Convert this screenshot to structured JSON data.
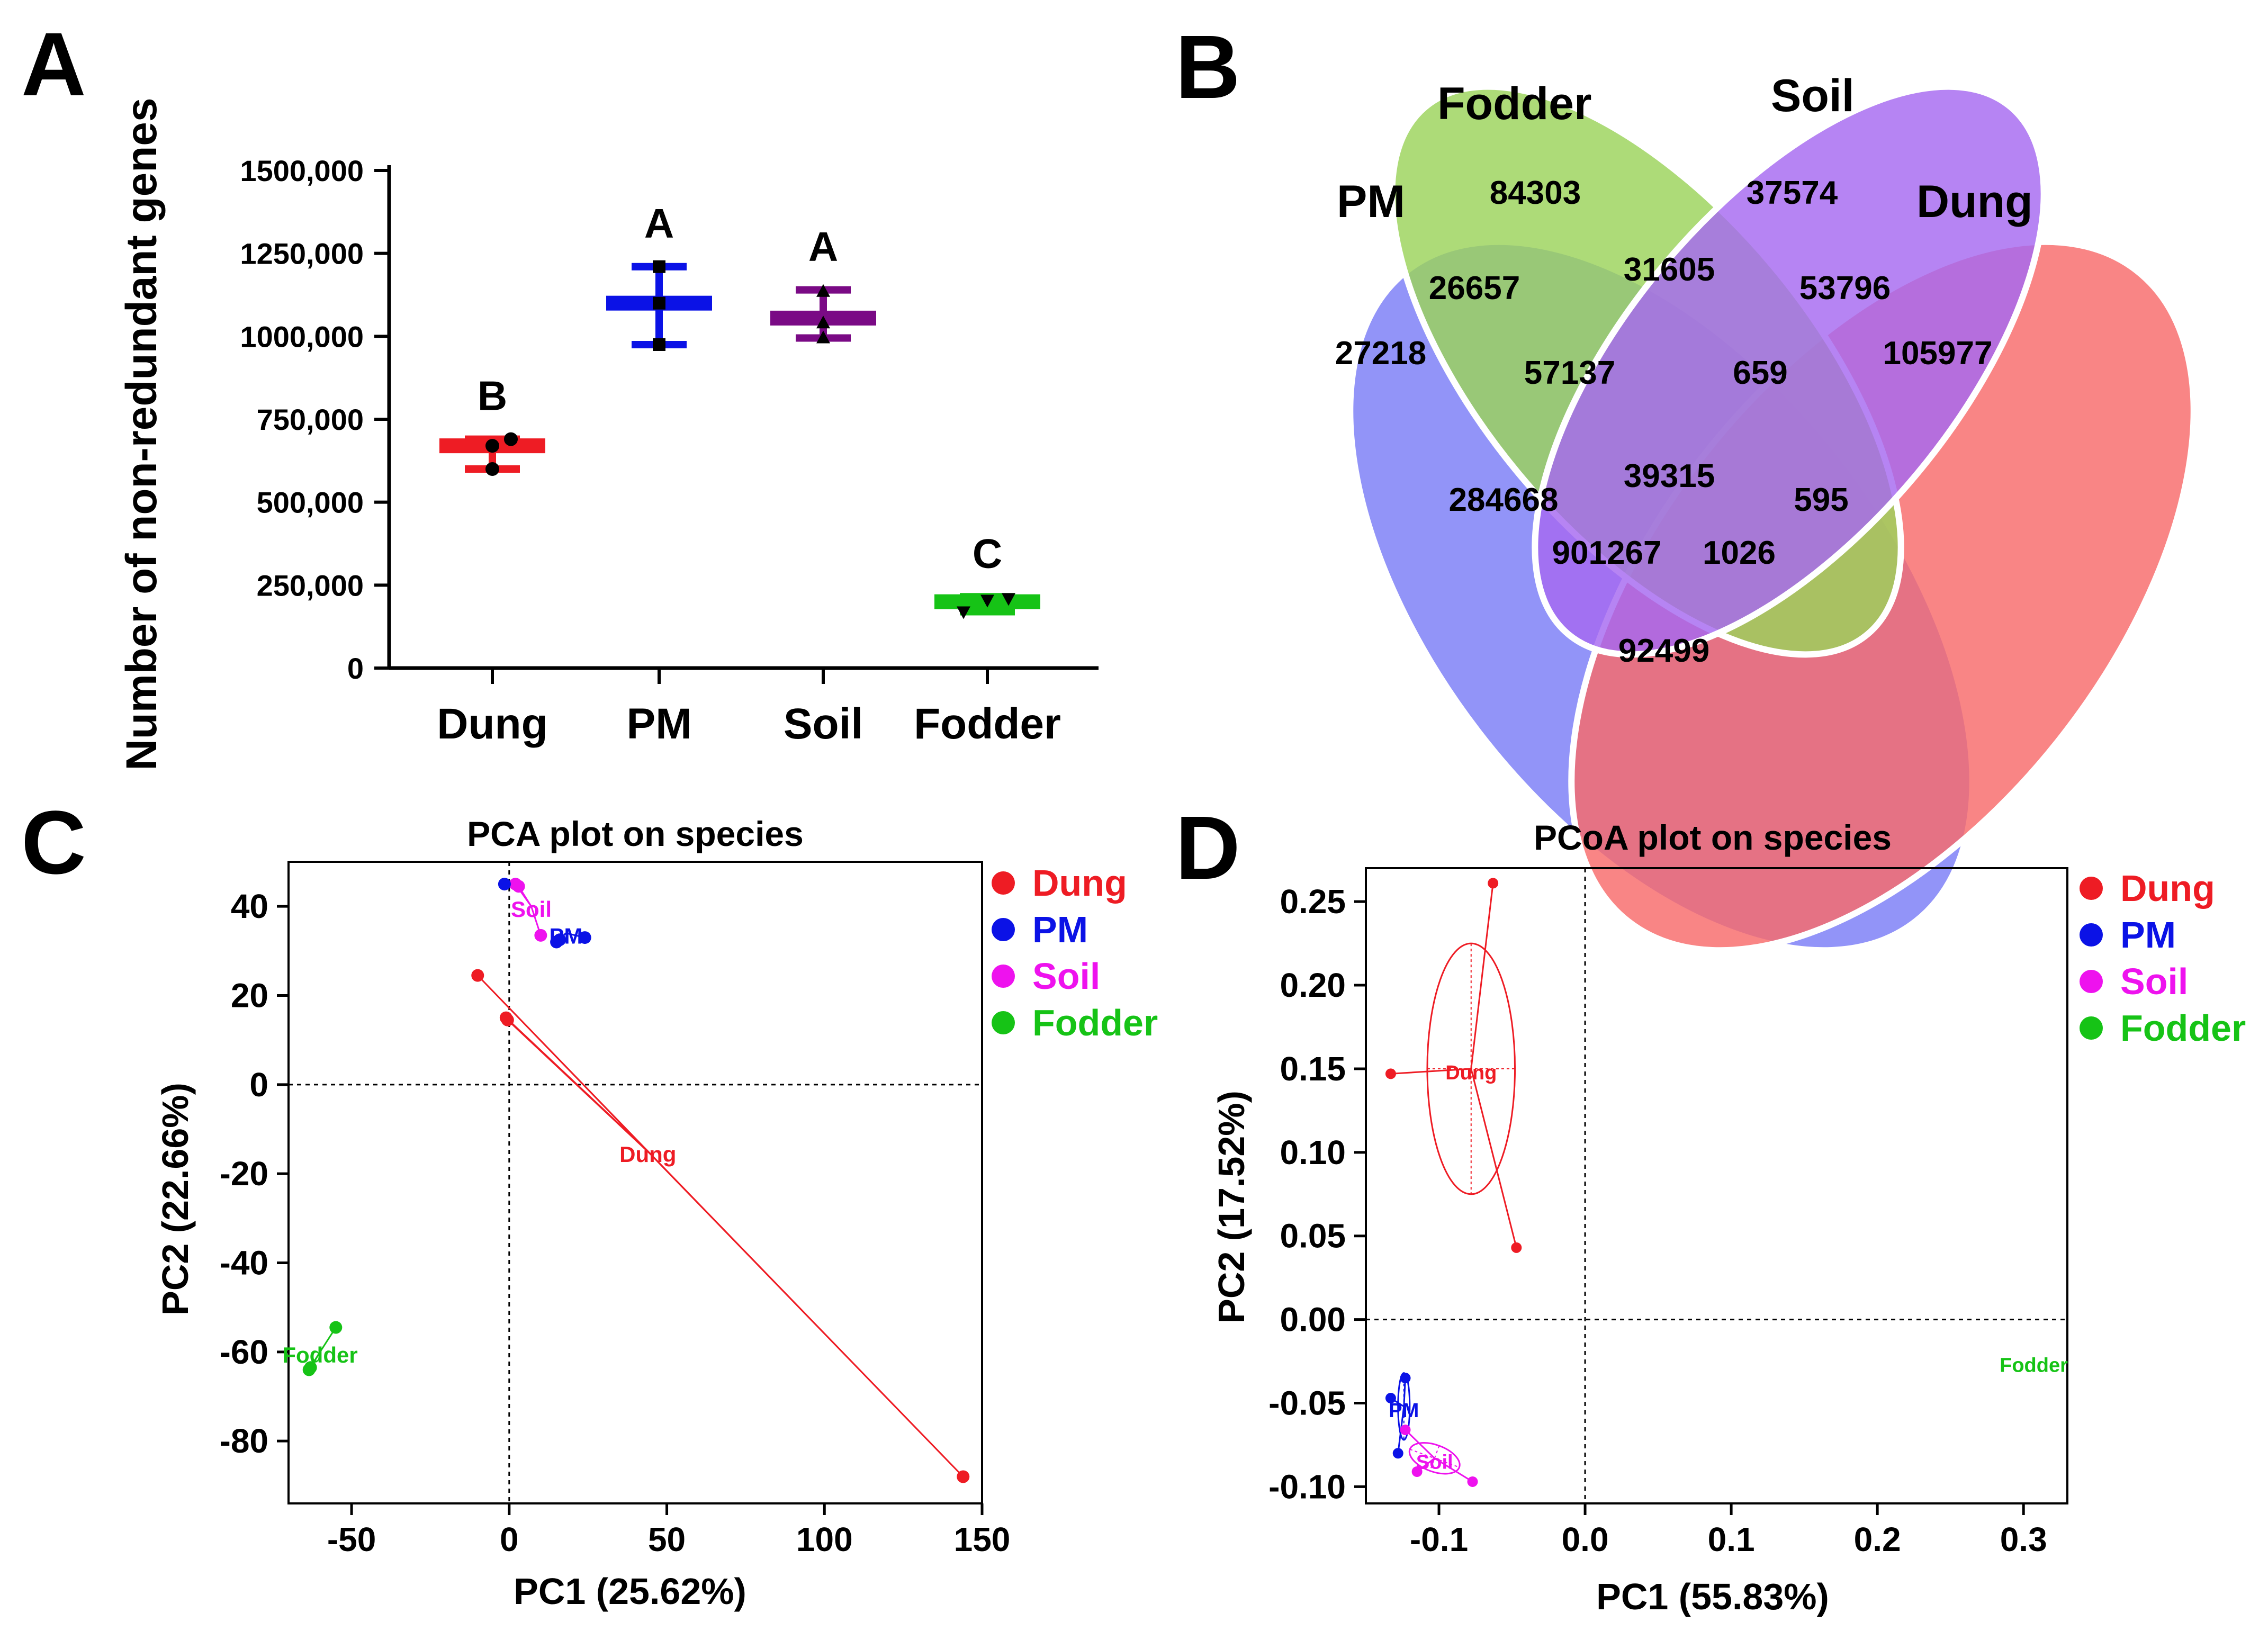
{
  "panels": {
    "A": "A",
    "B": "B",
    "C": "C",
    "D": "D"
  },
  "chart_data": [
    {
      "id": "A",
      "type": "scatter",
      "title": "",
      "xlabel": "",
      "ylabel": "Number of non-redundant genes",
      "ylim": [
        0,
        1500000
      ],
      "yticks": [
        0,
        250000,
        500000,
        750000,
        1000000,
        1250000,
        1500000
      ],
      "ytick_labels": [
        "0",
        "250,000",
        "500,000",
        "750,000",
        "1000,000",
        "1250,000",
        "1500,000"
      ],
      "categories": [
        "Dung",
        "PM",
        "Soil",
        "Fodder"
      ],
      "colors": [
        "#ee1c24",
        "#0b12e6",
        "#7a0a85",
        "#16c316"
      ],
      "series": [
        {
          "name": "Dung",
          "mean": 670000,
          "min": 600000,
          "max": 690000,
          "points": [
            600000,
            670000,
            690000
          ],
          "marker": "circle",
          "letter": "B"
        },
        {
          "name": "PM",
          "mean": 1100000,
          "min": 975000,
          "max": 1210000,
          "points": [
            975000,
            1100000,
            1210000
          ],
          "marker": "square",
          "letter": "A"
        },
        {
          "name": "Soil",
          "mean": 1055000,
          "min": 995000,
          "max": 1140000,
          "points": [
            995000,
            1040000,
            1135000
          ],
          "marker": "triangle",
          "letter": "A"
        },
        {
          "name": "Fodder",
          "mean": 200000,
          "min": 170000,
          "max": 215000,
          "points": [
            170000,
            205000,
            210000
          ],
          "marker": "invtriangle",
          "letter": "C"
        }
      ]
    },
    {
      "id": "B",
      "type": "venn",
      "sets": [
        {
          "name": "PM",
          "color": "#7a7cf7"
        },
        {
          "name": "Fodder",
          "color": "#9bd35a"
        },
        {
          "name": "Soil",
          "color": "#a669f0"
        },
        {
          "name": "Dung",
          "color": "#f86a6a"
        }
      ],
      "regions": [
        {
          "id": "pm_only",
          "value": "27218"
        },
        {
          "id": "fodder_only",
          "value": "84303"
        },
        {
          "id": "soil_only",
          "value": "37574"
        },
        {
          "id": "dung_only",
          "value": "105977"
        },
        {
          "id": "pm_fodder",
          "value": "26657"
        },
        {
          "id": "fodder_soil",
          "value": "31605"
        },
        {
          "id": "soil_dung",
          "value": "53796"
        },
        {
          "id": "pm_fodder_soil",
          "value": "57137"
        },
        {
          "id": "fodder_soil_dung",
          "value": "659"
        },
        {
          "id": "pm_soil",
          "value": "284668"
        },
        {
          "id": "all_four",
          "value": "39315"
        },
        {
          "id": "fodder_dung",
          "value": "595"
        },
        {
          "id": "pm_soil_dung",
          "value": "901267"
        },
        {
          "id": "pm_fodder_dung",
          "value": "1026"
        },
        {
          "id": "pm_dung",
          "value": "92499"
        }
      ]
    },
    {
      "id": "C",
      "type": "scatter",
      "title": "PCA plot on species",
      "xlabel": "PC1 (25.62%)",
      "ylabel": "PC2 (22.66%)",
      "xlim": [
        -70,
        150
      ],
      "ylim": [
        -94,
        50
      ],
      "xticks": [
        -50,
        0,
        50,
        100,
        150
      ],
      "yticks": [
        -80,
        -60,
        -40,
        -20,
        0,
        20,
        40
      ],
      "legend": [
        {
          "name": "Dung",
          "color": "#ee1c24"
        },
        {
          "name": "PM",
          "color": "#0b12e6"
        },
        {
          "name": "Soil",
          "color": "#ee12ee"
        },
        {
          "name": "Fodder",
          "color": "#16c316"
        }
      ],
      "groups": [
        {
          "name": "Dung",
          "color": "#ee1c24",
          "centroid": [
            44,
            -15
          ],
          "label": "Dung",
          "points": [
            [
              -10,
              24.5
            ],
            [
              -1,
              15
            ],
            [
              -0.5,
              14.5
            ],
            [
              144,
              -88
            ]
          ]
        },
        {
          "name": "PM",
          "color": "#0b12e6",
          "centroid": [
            18,
            34
          ],
          "label": "PM",
          "points": [
            [
              15,
              32
            ],
            [
              16,
              32.5
            ],
            [
              24,
              33
            ]
          ]
        },
        {
          "name": "Soil",
          "color": "#ee12ee",
          "centroid": [
            7,
            40
          ],
          "label": "Soil",
          "points": [
            [
              2,
              45
            ],
            [
              3,
              44.5
            ],
            [
              10,
              33.5
            ]
          ]
        },
        {
          "name": "Fodder",
          "color": "#16c316",
          "centroid": [
            -60,
            -60
          ],
          "label": "Fodder",
          "points": [
            [
              -55,
              -54.5
            ],
            [
              -63,
              -63.5
            ],
            [
              -63.5,
              -64
            ]
          ]
        }
      ],
      "extra_points": [
        {
          "group": "PM",
          "point": [
            -1.5,
            45
          ]
        }
      ]
    },
    {
      "id": "D",
      "type": "scatter",
      "title": "PCoA plot on species",
      "xlabel": "PC1 (55.83%)",
      "ylabel": "PC2 (17.52%)",
      "xlim": [
        -0.15,
        0.33
      ],
      "ylim": [
        -0.11,
        0.27
      ],
      "xticks": [
        -0.1,
        0.0,
        0.1,
        0.2,
        0.3
      ],
      "xtick_labels": [
        "-0.1",
        "0.0",
        "0.1",
        "0.2",
        "0.3"
      ],
      "yticks": [
        -0.1,
        -0.05,
        0.0,
        0.05,
        0.1,
        0.15,
        0.2,
        0.25
      ],
      "ytick_labels": [
        "-0.10",
        "-0.05",
        "0.00",
        "0.05",
        "0.10",
        "0.15",
        "0.20",
        "0.25"
      ],
      "legend": [
        {
          "name": "Dung",
          "color": "#ee1c24"
        },
        {
          "name": "PM",
          "color": "#0b12e6"
        },
        {
          "name": "Soil",
          "color": "#ee12ee"
        },
        {
          "name": "Fodder",
          "color": "#16c316"
        }
      ],
      "groups": [
        {
          "name": "Dung",
          "color": "#ee1c24",
          "centroid": [
            -0.078,
            0.15
          ],
          "label": "Dung",
          "points": [
            [
              -0.133,
              0.147
            ],
            [
              -0.063,
              0.261
            ],
            [
              -0.047,
              0.043
            ]
          ],
          "ellipse": {
            "rx": 0.03,
            "ry": 0.075
          }
        },
        {
          "name": "PM",
          "color": "#0b12e6",
          "centroid": [
            -0.124,
            -0.052
          ],
          "label": "PM",
          "points": [
            [
              -0.133,
              -0.047
            ],
            [
              -0.123,
              -0.035
            ],
            [
              -0.128,
              -0.08
            ]
          ],
          "ellipse": {
            "rx": 0.004,
            "ry": 0.02
          }
        },
        {
          "name": "Soil",
          "color": "#ee12ee",
          "centroid": [
            -0.103,
            -0.083
          ],
          "label": "Soil",
          "points": [
            [
              -0.123,
              -0.066
            ],
            [
              -0.115,
              -0.091
            ],
            [
              -0.077,
              -0.097
            ]
          ],
          "ellipse": {
            "rx": 0.018,
            "ry": 0.008
          }
        },
        {
          "name": "Fodder",
          "color": "#16c316",
          "centroid": [
            0.307,
            -0.025
          ],
          "label": "Fodder",
          "points": []
        }
      ]
    }
  ]
}
